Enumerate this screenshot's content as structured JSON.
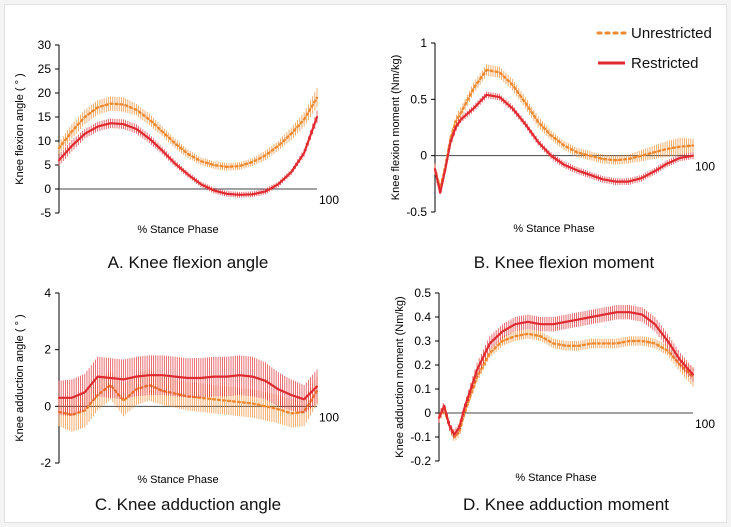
{
  "legend": {
    "unrestricted": "Unrestricted",
    "restricted": "Restricted"
  },
  "colors": {
    "unrestricted": "#f08a30",
    "restricted": "#e02a30"
  },
  "chart_data": [
    {
      "id": "A",
      "type": "line",
      "title": "A. Knee flexion angle",
      "xlabel": "% Stance Phase",
      "ylabel": "Knee flexion angle ( ° )",
      "x_end_label": "100",
      "xlim": [
        0,
        100
      ],
      "ylim": [
        -5,
        30
      ],
      "yticks": [
        30,
        25,
        20,
        15,
        10,
        5,
        0,
        -5
      ],
      "ytick_labels": [
        "30",
        "25",
        "20",
        "15",
        "10",
        "5",
        "0",
        "-5"
      ],
      "x": [
        0,
        5,
        10,
        15,
        20,
        25,
        30,
        35,
        40,
        45,
        50,
        55,
        60,
        65,
        70,
        75,
        80,
        85,
        90,
        95,
        100
      ],
      "series": [
        {
          "name": "Unrestricted",
          "style": "dotted",
          "values": [
            8.5,
            12,
            15,
            17,
            17.8,
            17.6,
            16.5,
            14.5,
            12,
            9.5,
            7.3,
            5.8,
            5,
            4.6,
            4.8,
            5.6,
            7,
            9,
            11.5,
            14.5,
            19
          ],
          "sd": [
            1.2,
            1.5,
            1.5,
            1.5,
            1.5,
            1.5,
            1.2,
            1.2,
            1,
            1,
            0.9,
            0.8,
            0.8,
            0.8,
            0.8,
            0.8,
            1,
            1,
            1.3,
            1.5,
            2
          ]
        },
        {
          "name": "Restricted",
          "style": "solid",
          "values": [
            6,
            9,
            11.5,
            13,
            13.7,
            13.5,
            12.5,
            10.5,
            8,
            5.3,
            3,
            1,
            -0.3,
            -1,
            -1.2,
            -1.1,
            -0.5,
            1,
            3.5,
            7.5,
            15
          ],
          "sd": [
            1.2,
            1.2,
            1,
            1,
            1,
            1,
            1,
            0.9,
            0.8,
            0.7,
            0.6,
            0.6,
            0.6,
            0.6,
            0.6,
            0.6,
            0.6,
            0.6,
            0.6,
            0.8,
            1.3
          ]
        }
      ]
    },
    {
      "id": "B",
      "type": "line",
      "title": "B. Knee flexion moment",
      "xlabel": "% Stance Phase",
      "ylabel": "Knee flexion moment (Nm/kg)",
      "x_end_label": "100",
      "xlim": [
        0,
        100
      ],
      "ylim": [
        -0.5,
        1
      ],
      "yticks": [
        1,
        0.5,
        0,
        -0.5
      ],
      "ytick_labels": [
        "1",
        "0.5",
        "0",
        "-0.5"
      ],
      "x": [
        0,
        2,
        4,
        6,
        8,
        10,
        15,
        20,
        25,
        30,
        35,
        40,
        45,
        50,
        55,
        60,
        65,
        70,
        75,
        80,
        85,
        90,
        95,
        100
      ],
      "series": [
        {
          "name": "Unrestricted",
          "style": "dotted",
          "values": [
            -0.12,
            -0.3,
            -0.1,
            0.15,
            0.3,
            0.38,
            0.6,
            0.76,
            0.74,
            0.63,
            0.47,
            0.3,
            0.18,
            0.09,
            0.03,
            0.0,
            -0.03,
            -0.04,
            -0.03,
            0.0,
            0.03,
            0.06,
            0.08,
            0.09
          ],
          "sd": [
            0.05,
            0.05,
            0.05,
            0.05,
            0.05,
            0.05,
            0.05,
            0.05,
            0.05,
            0.05,
            0.05,
            0.05,
            0.04,
            0.04,
            0.04,
            0.04,
            0.04,
            0.04,
            0.04,
            0.05,
            0.06,
            0.07,
            0.08,
            0.06
          ]
        },
        {
          "name": "Restricted",
          "style": "solid",
          "values": [
            -0.12,
            -0.33,
            -0.12,
            0.12,
            0.25,
            0.32,
            0.42,
            0.54,
            0.52,
            0.42,
            0.28,
            0.12,
            0.0,
            -0.08,
            -0.13,
            -0.17,
            -0.21,
            -0.23,
            -0.23,
            -0.2,
            -0.14,
            -0.07,
            -0.02,
            0.0
          ],
          "sd": [
            0.04,
            0.04,
            0.04,
            0.04,
            0.04,
            0.03,
            0.03,
            0.03,
            0.03,
            0.03,
            0.03,
            0.03,
            0.03,
            0.03,
            0.03,
            0.03,
            0.03,
            0.03,
            0.03,
            0.03,
            0.03,
            0.03,
            0.03,
            0.03
          ]
        }
      ]
    },
    {
      "id": "C",
      "type": "line",
      "title": "C. Knee adduction angle",
      "xlabel": "% Stance Phase",
      "ylabel": "Knee adduction angle ( ° )",
      "x_end_label": "100",
      "xlim": [
        0,
        100
      ],
      "ylim": [
        -2,
        4
      ],
      "yticks": [
        4,
        2,
        0,
        -2
      ],
      "ytick_labels": [
        "4",
        "2",
        "0",
        "-2"
      ],
      "x": [
        0,
        5,
        10,
        15,
        20,
        25,
        30,
        35,
        40,
        45,
        50,
        55,
        60,
        65,
        70,
        75,
        80,
        85,
        90,
        95,
        100
      ],
      "series": [
        {
          "name": "Unrestricted",
          "style": "dotted",
          "values": [
            -0.2,
            -0.3,
            -0.15,
            0.4,
            0.75,
            0.2,
            0.6,
            0.75,
            0.55,
            0.45,
            0.35,
            0.3,
            0.25,
            0.2,
            0.15,
            0.1,
            0.0,
            -0.1,
            -0.25,
            -0.2,
            0.55
          ],
          "sd": [
            0.5,
            0.6,
            0.6,
            0.55,
            0.5,
            0.55,
            0.55,
            0.55,
            0.5,
            0.5,
            0.5,
            0.5,
            0.5,
            0.5,
            0.5,
            0.5,
            0.5,
            0.5,
            0.5,
            0.5,
            0.5
          ]
        },
        {
          "name": "Restricted",
          "style": "solid",
          "values": [
            0.3,
            0.3,
            0.5,
            1.05,
            1.0,
            0.95,
            1.05,
            1.1,
            1.1,
            1.05,
            1.0,
            1.0,
            1.05,
            1.05,
            1.1,
            1.05,
            0.9,
            0.6,
            0.4,
            0.25,
            0.7
          ],
          "sd": [
            0.6,
            0.65,
            0.65,
            0.7,
            0.7,
            0.7,
            0.7,
            0.7,
            0.7,
            0.7,
            0.7,
            0.7,
            0.7,
            0.7,
            0.7,
            0.7,
            0.65,
            0.6,
            0.55,
            0.5,
            0.6
          ]
        }
      ]
    },
    {
      "id": "D",
      "type": "line",
      "title": "D. Knee adduction moment",
      "xlabel": "% Stance Phase",
      "ylabel": "Knee adduction moment (Nm/kg)",
      "x_end_label": "100",
      "xlim": [
        0,
        100
      ],
      "ylim": [
        -0.2,
        0.5
      ],
      "yticks": [
        0.5,
        0.4,
        0.3,
        0.2,
        0.1,
        0,
        -0.1,
        -0.2
      ],
      "ytick_labels": [
        "0.5",
        "0.4",
        "0.3",
        "0.2",
        "0.1",
        "0",
        "-0.1",
        "-0.2"
      ],
      "x": [
        0,
        2,
        4,
        6,
        8,
        10,
        15,
        20,
        25,
        30,
        35,
        40,
        45,
        50,
        55,
        60,
        65,
        70,
        75,
        80,
        85,
        90,
        95,
        100
      ],
      "series": [
        {
          "name": "Unrestricted",
          "style": "dotted",
          "values": [
            -0.02,
            0.02,
            -0.05,
            -0.1,
            -0.08,
            0.0,
            0.15,
            0.25,
            0.3,
            0.32,
            0.33,
            0.32,
            0.29,
            0.28,
            0.28,
            0.29,
            0.29,
            0.29,
            0.3,
            0.3,
            0.29,
            0.26,
            0.2,
            0.15
          ],
          "sd": [
            0.02,
            0.02,
            0.02,
            0.02,
            0.02,
            0.02,
            0.02,
            0.02,
            0.02,
            0.02,
            0.02,
            0.02,
            0.02,
            0.02,
            0.02,
            0.02,
            0.02,
            0.02,
            0.02,
            0.02,
            0.02,
            0.02,
            0.03,
            0.04
          ]
        },
        {
          "name": "Restricted",
          "style": "solid",
          "values": [
            -0.02,
            0.03,
            -0.05,
            -0.09,
            -0.06,
            0.02,
            0.18,
            0.29,
            0.34,
            0.37,
            0.38,
            0.37,
            0.37,
            0.38,
            0.39,
            0.4,
            0.41,
            0.42,
            0.42,
            0.41,
            0.37,
            0.3,
            0.22,
            0.16
          ],
          "sd": [
            0.02,
            0.02,
            0.02,
            0.02,
            0.02,
            0.02,
            0.03,
            0.03,
            0.03,
            0.03,
            0.03,
            0.03,
            0.03,
            0.03,
            0.03,
            0.03,
            0.03,
            0.03,
            0.03,
            0.03,
            0.03,
            0.03,
            0.03,
            0.03
          ]
        }
      ]
    }
  ]
}
